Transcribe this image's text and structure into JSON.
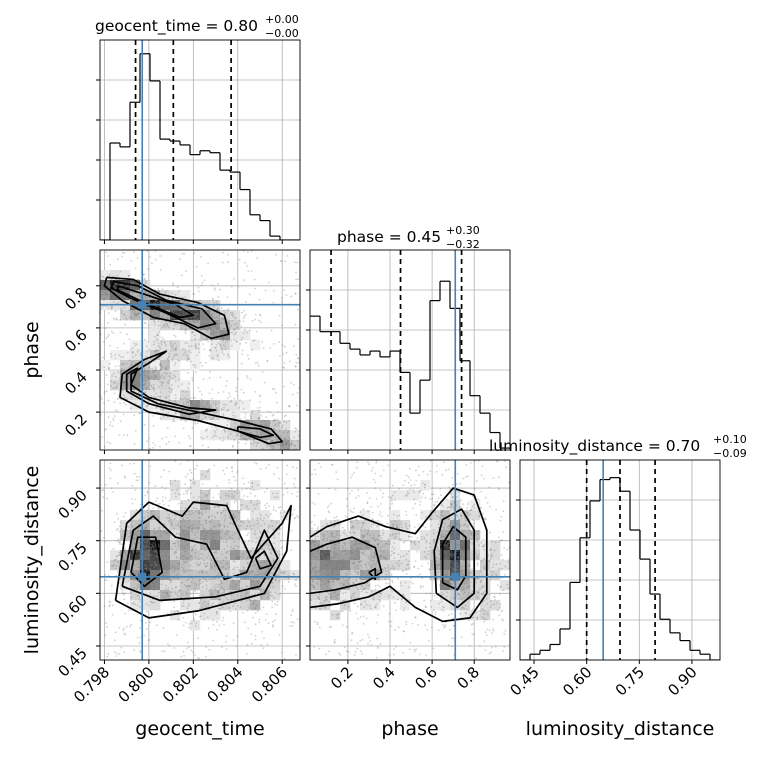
{
  "chart_data": {
    "type": "corner",
    "parameters": [
      "geocent_time",
      "phase",
      "luminosity_distance"
    ],
    "titles": [
      {
        "param": "geocent_time",
        "text": "geocent_time = 0.80",
        "sup": "+0.00",
        "sub": "−0.00"
      },
      {
        "param": "phase",
        "text": "phase = 0.45",
        "sup": "+0.30",
        "sub": "−0.32"
      },
      {
        "param": "luminosity_distance",
        "text": "luminosity_distance = 0.70",
        "sup": "+0.10",
        "sub": "−0.09"
      }
    ],
    "axis_labels": {
      "geocent_time": "geocent_time",
      "phase": "phase",
      "luminosity_distance": "luminosity_distance"
    },
    "ranges": {
      "geocent_time": [
        0.7978,
        0.8068
      ],
      "phase": [
        0.02,
        0.97
      ],
      "luminosity_distance": [
        0.41,
        0.98
      ]
    },
    "ticks": {
      "geocent_time": [
        "0.798",
        "0.800",
        "0.802",
        "0.804",
        "0.806"
      ],
      "phase": [
        "0.2",
        "0.4",
        "0.6",
        "0.8"
      ],
      "luminosity_distance": [
        "0.45",
        "0.60",
        "0.75",
        "0.90"
      ]
    },
    "truths": {
      "geocent_time": 0.7997,
      "phase": 0.71,
      "luminosity_distance": 0.647
    },
    "quantiles": {
      "geocent_time": [
        0.7994,
        0.8011,
        0.8037
      ],
      "phase": [
        0.12,
        0.45,
        0.74
      ],
      "luminosity_distance": [
        0.6,
        0.695,
        0.795
      ]
    },
    "histograms": {
      "geocent_time": {
        "edges_range": [
          0.7978,
          0.8068
        ],
        "counts": [
          0.0,
          0.5,
          0.48,
          0.71,
          0.96,
          0.82,
          0.52,
          0.51,
          0.49,
          0.44,
          0.46,
          0.45,
          0.36,
          0.35,
          0.26,
          0.13,
          0.1,
          0.02,
          0.0,
          0.0
        ]
      },
      "phase": {
        "edges_range": [
          0.02,
          0.97
        ],
        "counts": [
          0.69,
          0.61,
          0.61,
          0.55,
          0.52,
          0.49,
          0.51,
          0.48,
          0.51,
          0.4,
          0.19,
          0.36,
          0.77,
          0.87,
          0.73,
          0.46,
          0.28,
          0.19,
          0.09,
          0.01
        ]
      },
      "luminosity_distance": {
        "edges_range": [
          0.41,
          0.98
        ],
        "counts": [
          0.0,
          0.03,
          0.05,
          0.08,
          0.16,
          0.4,
          0.63,
          0.82,
          0.93,
          0.94,
          0.87,
          0.67,
          0.52,
          0.34,
          0.21,
          0.14,
          0.1,
          0.05,
          0.03,
          0.0
        ]
      }
    },
    "grid": true,
    "colors": {
      "truth": "#4682b4",
      "histogram": "#000000",
      "contour": "#000000",
      "density": "#808080"
    }
  }
}
